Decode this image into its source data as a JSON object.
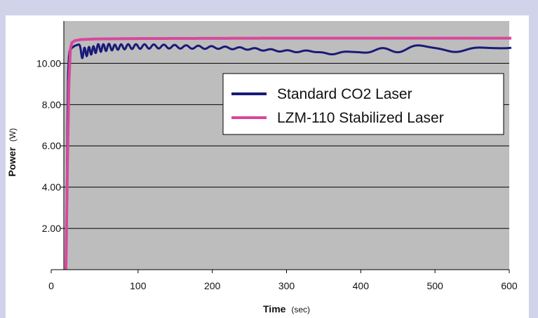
{
  "chart_data": {
    "type": "line",
    "title": "",
    "xlabel": {
      "bold": "Time",
      "rest": "(sec)"
    },
    "ylabel": {
      "bold": "Power",
      "rest": "(W)"
    },
    "xlim": [
      0,
      600
    ],
    "ylim": [
      0,
      12.05
    ],
    "x_ticks": [
      0,
      100,
      200,
      300,
      400,
      500,
      600
    ],
    "x_tick_labels": [
      "0",
      "100",
      "200",
      "300",
      "400",
      "500",
      "600"
    ],
    "y_ticks": [
      2,
      4,
      6,
      8,
      10
    ],
    "y_tick_labels": [
      "2.00",
      "4.00",
      "6.00",
      "8.00",
      "10.00"
    ],
    "grid": "horizontal",
    "legend_position": "top-right",
    "plot_background": "#bdbdbd",
    "page_background": "#d0d3ea",
    "series": [
      {
        "name": "Standard CO2 Laser",
        "color": "#1a1a78",
        "points": [
          [
            0,
            0
          ],
          [
            1,
            3
          ],
          [
            2,
            7
          ],
          [
            3,
            9.5
          ],
          [
            4,
            10.3
          ],
          [
            5,
            10.6
          ],
          [
            8,
            10.75
          ],
          [
            12,
            10.85
          ],
          [
            20,
            10.95
          ],
          [
            40,
            11.0
          ],
          [
            80,
            11.05
          ],
          [
            150,
            11.1
          ],
          [
            300,
            11.15
          ],
          [
            600,
            11.15
          ]
        ],
        "ripples": [
          {
            "x": 22,
            "depth": 0.7
          },
          {
            "x": 28,
            "depth": 0.62
          },
          {
            "x": 34,
            "depth": 0.56
          },
          {
            "x": 40,
            "depth": 0.5
          },
          {
            "x": 47,
            "depth": 0.45
          },
          {
            "x": 54,
            "depth": 0.42
          },
          {
            "x": 62,
            "depth": 0.4
          },
          {
            "x": 70,
            "depth": 0.38
          },
          {
            "x": 79,
            "depth": 0.37
          },
          {
            "x": 89,
            "depth": 0.36
          },
          {
            "x": 100,
            "depth": 0.36
          },
          {
            "x": 112,
            "depth": 0.36
          },
          {
            "x": 125,
            "depth": 0.36
          },
          {
            "x": 139,
            "depth": 0.37
          },
          {
            "x": 154,
            "depth": 0.38
          },
          {
            "x": 170,
            "depth": 0.39
          },
          {
            "x": 187,
            "depth": 0.4
          },
          {
            "x": 205,
            "depth": 0.4
          },
          {
            "x": 224,
            "depth": 0.42
          },
          {
            "x": 244,
            "depth": 0.44
          },
          {
            "x": 265,
            "depth": 0.48
          },
          {
            "x": 287,
            "depth": 0.52
          },
          {
            "x": 310,
            "depth": 0.55
          },
          {
            "x": 334,
            "depth": 0.5
          },
          {
            "x": 358,
            "depth": 0.62
          },
          {
            "x": 383,
            "depth": 0.45
          },
          {
            "x": 408,
            "depth": 0.55
          },
          {
            "x": 447,
            "depth": 0.6
          },
          {
            "x": 490,
            "depth": 0.3
          },
          {
            "x": 525,
            "depth": 0.55
          },
          {
            "x": 565,
            "depth": 0.3
          },
          {
            "x": 600,
            "depth": 0.35
          }
        ]
      },
      {
        "name": "LZM-110 Stabilized Laser",
        "color": "#d8479c",
        "points": [
          [
            0,
            0
          ],
          [
            2,
            5
          ],
          [
            4,
            9
          ],
          [
            6,
            10.7
          ],
          [
            8,
            11.0
          ],
          [
            12,
            11.1
          ],
          [
            20,
            11.15
          ],
          [
            40,
            11.18
          ],
          [
            100,
            11.2
          ],
          [
            300,
            11.22
          ],
          [
            600,
            11.22
          ]
        ]
      }
    ]
  }
}
